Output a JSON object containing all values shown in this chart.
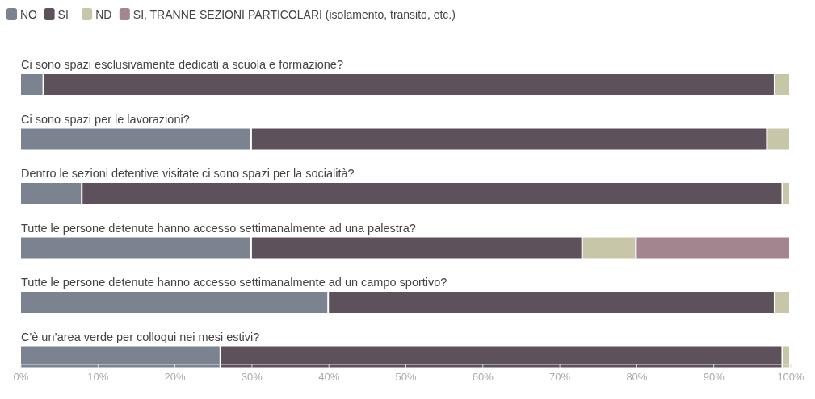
{
  "chart_data": {
    "type": "bar",
    "orientation": "horizontal",
    "stacked": true,
    "legend": "top left",
    "categories": [
      "Ci sono spazi esclusivamente dedicati a scuola e formazione?",
      "Ci sono spazi per le lavorazioni?",
      "Dentro le sezioni detentive visitate ci sono spazi per la socialità?",
      "Tutte le persone detenute hanno accesso settimanalmente ad una palestra?",
      "Tutte le persone detenute hanno accesso settimanalmente ad un campo sportivo?",
      "C'è un’area verde per colloqui nei mesi estivi?"
    ],
    "series": [
      {
        "name": "NO",
        "color": "#7b8290",
        "values": [
          3,
          30,
          8,
          30,
          40,
          26
        ]
      },
      {
        "name": "SI",
        "color": "#5d525c",
        "values": [
          95,
          67,
          91,
          43,
          58,
          73
        ]
      },
      {
        "name": "ND",
        "color": "#c7c6a8",
        "values": [
          2,
          3,
          1,
          7,
          2,
          1
        ]
      },
      {
        "name": "SI, TRANNE SEZIONI PARTICOLARI (isolamento, transito, etc.)",
        "color": "#a3858f",
        "values": [
          0,
          0,
          0,
          20,
          0,
          0
        ]
      }
    ],
    "xlim": [
      0,
      100
    ],
    "xticks": [
      {
        "value": 0,
        "label": "0%"
      },
      {
        "value": 10,
        "label": "10%"
      },
      {
        "value": 20,
        "label": "20%"
      },
      {
        "value": 30,
        "label": "30%"
      },
      {
        "value": 40,
        "label": "40%"
      },
      {
        "value": 50,
        "label": "50%"
      },
      {
        "value": 60,
        "label": "60%"
      },
      {
        "value": 70,
        "label": "70%"
      },
      {
        "value": 80,
        "label": "80%"
      },
      {
        "value": 90,
        "label": "90%"
      },
      {
        "value": 100,
        "label": "100%"
      }
    ]
  }
}
